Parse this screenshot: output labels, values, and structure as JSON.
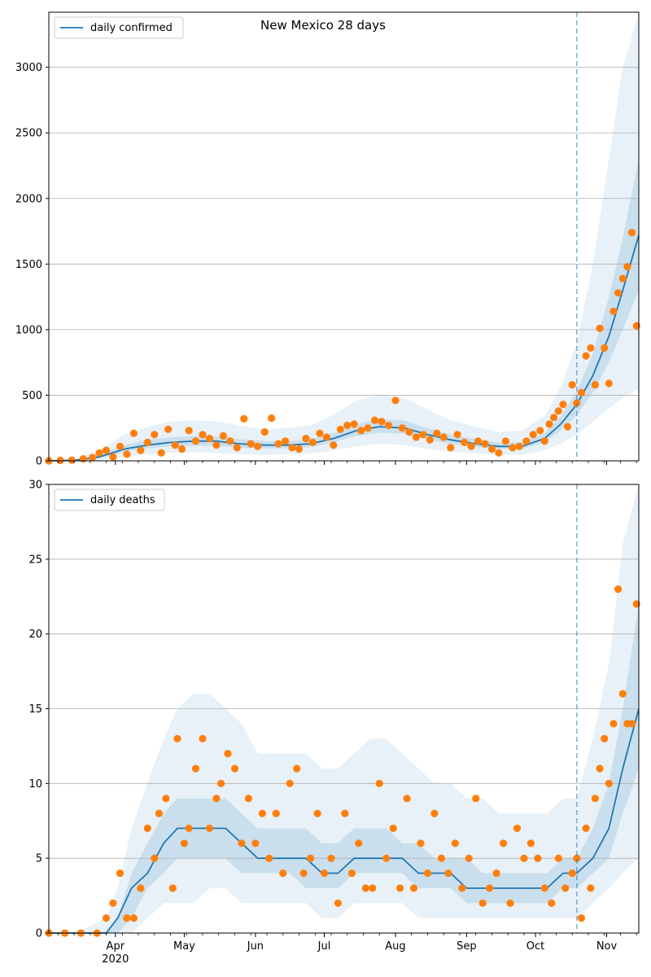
{
  "colors": {
    "line": "#1f77b4",
    "points": "#ff7f0e",
    "band": "#1f77b4",
    "grid": "#b0b0b0",
    "vline": "#1f77b4"
  },
  "chart_data": [
    {
      "type": "line",
      "title": "New Mexico 28 days",
      "xlabel": "",
      "ylabel": "",
      "xlim": [
        "2020-03-03",
        "2020-11-15"
      ],
      "ylim": [
        0,
        3420
      ],
      "yticks": [
        0,
        500,
        1000,
        1500,
        2000,
        2500,
        3000
      ],
      "grid": "horizontal",
      "legend": {
        "position": "top-left",
        "entries": [
          "daily confirmed"
        ]
      },
      "vline_date": "2020-10-19",
      "series": [
        {
          "name": "daily confirmed",
          "x": [
            "2020-03-03",
            "2020-03-15",
            "2020-03-25",
            "2020-04-05",
            "2020-04-15",
            "2020-04-25",
            "2020-05-05",
            "2020-05-15",
            "2020-05-25",
            "2020-06-05",
            "2020-06-15",
            "2020-06-25",
            "2020-07-05",
            "2020-07-15",
            "2020-07-25",
            "2020-08-05",
            "2020-08-15",
            "2020-08-25",
            "2020-09-05",
            "2020-09-15",
            "2020-09-25",
            "2020-10-05",
            "2020-10-12",
            "2020-10-19",
            "2020-10-26",
            "2020-11-02",
            "2020-11-08",
            "2020-11-15"
          ],
          "values": [
            0,
            5,
            30,
            90,
            120,
            140,
            150,
            150,
            130,
            120,
            120,
            130,
            170,
            230,
            260,
            250,
            200,
            160,
            130,
            110,
            110,
            170,
            280,
            430,
            650,
            950,
            1300,
            1720
          ],
          "band_p5": [
            0,
            0,
            5,
            30,
            50,
            60,
            65,
            60,
            50,
            45,
            50,
            55,
            80,
            110,
            130,
            120,
            90,
            70,
            55,
            45,
            45,
            80,
            130,
            200,
            300,
            400,
            480,
            550
          ],
          "band_p25": [
            0,
            2,
            20,
            70,
            95,
            110,
            115,
            115,
            100,
            95,
            95,
            105,
            140,
            190,
            215,
            205,
            165,
            130,
            105,
            90,
            90,
            140,
            230,
            350,
            520,
            750,
            1000,
            1300
          ],
          "band_p75": [
            0,
            10,
            45,
            120,
            160,
            180,
            190,
            185,
            165,
            150,
            150,
            165,
            210,
            280,
            320,
            305,
            250,
            200,
            165,
            140,
            140,
            210,
            340,
            530,
            820,
            1250,
            1700,
            2300
          ],
          "band_p95": [
            0,
            20,
            80,
            200,
            260,
            300,
            310,
            300,
            270,
            240,
            250,
            270,
            350,
            460,
            500,
            480,
            390,
            310,
            260,
            220,
            230,
            340,
            560,
            900,
            1500,
            2300,
            3000,
            3420
          ]
        },
        {
          "name": "",
          "kind": "observed points",
          "x": [
            "2020-03-03",
            "2020-03-08",
            "2020-03-13",
            "2020-03-18",
            "2020-03-22",
            "2020-03-25",
            "2020-03-28",
            "2020-03-31",
            "2020-04-03",
            "2020-04-06",
            "2020-04-09",
            "2020-04-12",
            "2020-04-15",
            "2020-04-18",
            "2020-04-21",
            "2020-04-24",
            "2020-04-27",
            "2020-04-30",
            "2020-05-03",
            "2020-05-06",
            "2020-05-09",
            "2020-05-12",
            "2020-05-15",
            "2020-05-18",
            "2020-05-21",
            "2020-05-24",
            "2020-05-27",
            "2020-05-30",
            "2020-06-02",
            "2020-06-05",
            "2020-06-08",
            "2020-06-11",
            "2020-06-14",
            "2020-06-17",
            "2020-06-20",
            "2020-06-23",
            "2020-06-26",
            "2020-06-29",
            "2020-07-02",
            "2020-07-05",
            "2020-07-08",
            "2020-07-11",
            "2020-07-14",
            "2020-07-17",
            "2020-07-20",
            "2020-07-23",
            "2020-07-26",
            "2020-07-29",
            "2020-08-01",
            "2020-08-04",
            "2020-08-07",
            "2020-08-10",
            "2020-08-13",
            "2020-08-16",
            "2020-08-19",
            "2020-08-22",
            "2020-08-25",
            "2020-08-28",
            "2020-08-31",
            "2020-09-03",
            "2020-09-06",
            "2020-09-09",
            "2020-09-12",
            "2020-09-15",
            "2020-09-18",
            "2020-09-21",
            "2020-09-24",
            "2020-09-27",
            "2020-09-30",
            "2020-10-03",
            "2020-10-05",
            "2020-10-07",
            "2020-10-09",
            "2020-10-11",
            "2020-10-13",
            "2020-10-15",
            "2020-10-17",
            "2020-10-19",
            "2020-10-21",
            "2020-10-23",
            "2020-10-25",
            "2020-10-27",
            "2020-10-29",
            "2020-10-31",
            "2020-11-02",
            "2020-11-04",
            "2020-11-06",
            "2020-11-08",
            "2020-11-10",
            "2020-11-12",
            "2020-11-14"
          ],
          "values": [
            0,
            3,
            5,
            15,
            25,
            60,
            80,
            30,
            110,
            50,
            210,
            80,
            140,
            200,
            60,
            240,
            120,
            90,
            230,
            150,
            200,
            170,
            120,
            190,
            150,
            100,
            320,
            130,
            110,
            220,
            325,
            130,
            150,
            100,
            90,
            170,
            140,
            210,
            180,
            120,
            240,
            270,
            280,
            230,
            250,
            310,
            300,
            270,
            460,
            250,
            220,
            180,
            200,
            160,
            210,
            180,
            100,
            200,
            140,
            110,
            150,
            130,
            90,
            60,
            150,
            100,
            110,
            150,
            200,
            230,
            150,
            280,
            330,
            380,
            430,
            260,
            580,
            440,
            520,
            800,
            860,
            580,
            1010,
            860,
            590,
            1140,
            1280,
            1390,
            1480,
            1740,
            1030
          ]
        }
      ]
    },
    {
      "type": "line",
      "title": "",
      "xlabel": "",
      "ylabel": "",
      "xlim": [
        "2020-03-03",
        "2020-11-15"
      ],
      "ylim": [
        0,
        30
      ],
      "yticks": [
        0,
        5,
        10,
        15,
        20,
        25,
        30
      ],
      "grid": "horizontal",
      "legend": {
        "position": "top-left",
        "entries": [
          "daily deaths"
        ]
      },
      "vline_date": "2020-10-19",
      "xtick_labels": [
        "Apr\n2020",
        "May",
        "Jun",
        "Jul",
        "Aug",
        "Sep",
        "Oct",
        "Nov"
      ],
      "xtick_dates": [
        "2020-04-01",
        "2020-05-01",
        "2020-06-01",
        "2020-07-01",
        "2020-08-01",
        "2020-09-01",
        "2020-10-01",
        "2020-11-01"
      ],
      "series": [
        {
          "name": "daily deaths",
          "x": [
            "2020-03-03",
            "2020-03-15",
            "2020-03-28",
            "2020-04-02",
            "2020-04-08",
            "2020-04-15",
            "2020-04-22",
            "2020-04-28",
            "2020-05-05",
            "2020-05-12",
            "2020-05-19",
            "2020-05-26",
            "2020-06-02",
            "2020-06-09",
            "2020-06-16",
            "2020-06-23",
            "2020-06-30",
            "2020-07-07",
            "2020-07-14",
            "2020-07-21",
            "2020-07-28",
            "2020-08-04",
            "2020-08-11",
            "2020-08-18",
            "2020-08-25",
            "2020-09-01",
            "2020-09-08",
            "2020-09-15",
            "2020-09-22",
            "2020-09-29",
            "2020-10-06",
            "2020-10-13",
            "2020-10-19",
            "2020-10-26",
            "2020-11-02",
            "2020-11-08",
            "2020-11-15"
          ],
          "values": [
            0,
            0,
            0,
            1,
            3,
            4,
            6,
            7,
            7,
            7,
            7,
            6,
            5,
            5,
            5,
            5,
            4,
            4,
            5,
            5,
            5,
            5,
            4,
            4,
            4,
            3,
            3,
            3,
            3,
            3,
            3,
            4,
            4,
            5,
            7,
            11,
            15
          ],
          "band_p5": [
            0,
            0,
            0,
            0,
            0,
            1,
            2,
            2,
            2,
            3,
            3,
            2,
            2,
            2,
            2,
            2,
            1,
            1,
            2,
            2,
            2,
            2,
            1,
            1,
            1,
            1,
            1,
            1,
            1,
            1,
            1,
            1,
            1,
            2,
            3,
            4,
            5
          ],
          "band_p25": [
            0,
            0,
            0,
            0,
            1,
            3,
            4,
            5,
            5,
            5,
            5,
            4,
            4,
            4,
            4,
            3,
            3,
            3,
            4,
            4,
            4,
            4,
            3,
            3,
            3,
            2,
            2,
            2,
            2,
            2,
            2,
            3,
            3,
            4,
            5,
            8,
            11
          ],
          "band_p75": [
            0,
            0,
            0,
            1,
            4,
            6,
            8,
            9,
            9,
            9,
            9,
            8,
            7,
            7,
            7,
            7,
            6,
            6,
            7,
            7,
            7,
            6,
            6,
            5,
            5,
            5,
            4,
            4,
            4,
            4,
            4,
            5,
            5,
            7,
            10,
            15,
            22
          ],
          "band_p95": [
            0,
            0,
            1,
            3,
            7,
            10,
            13,
            15,
            16,
            16,
            15,
            14,
            12,
            12,
            12,
            12,
            11,
            11,
            12,
            13,
            13,
            12,
            11,
            10,
            10,
            9,
            9,
            8,
            8,
            8,
            8,
            9,
            9,
            13,
            18,
            26,
            30
          ]
        },
        {
          "name": "",
          "kind": "observed points",
          "x": [
            "2020-03-03",
            "2020-03-10",
            "2020-03-17",
            "2020-03-24",
            "2020-03-28",
            "2020-03-31",
            "2020-04-03",
            "2020-04-06",
            "2020-04-09",
            "2020-04-12",
            "2020-04-15",
            "2020-04-18",
            "2020-04-20",
            "2020-04-23",
            "2020-04-26",
            "2020-04-28",
            "2020-05-01",
            "2020-05-03",
            "2020-05-06",
            "2020-05-09",
            "2020-05-12",
            "2020-05-15",
            "2020-05-17",
            "2020-05-20",
            "2020-05-23",
            "2020-05-26",
            "2020-05-29",
            "2020-06-01",
            "2020-06-04",
            "2020-06-07",
            "2020-06-10",
            "2020-06-13",
            "2020-06-16",
            "2020-06-19",
            "2020-06-22",
            "2020-06-25",
            "2020-06-28",
            "2020-07-01",
            "2020-07-04",
            "2020-07-07",
            "2020-07-10",
            "2020-07-13",
            "2020-07-16",
            "2020-07-19",
            "2020-07-22",
            "2020-07-25",
            "2020-07-28",
            "2020-07-31",
            "2020-08-03",
            "2020-08-06",
            "2020-08-09",
            "2020-08-12",
            "2020-08-15",
            "2020-08-18",
            "2020-08-21",
            "2020-08-24",
            "2020-08-27",
            "2020-08-30",
            "2020-09-02",
            "2020-09-05",
            "2020-09-08",
            "2020-09-11",
            "2020-09-14",
            "2020-09-17",
            "2020-09-20",
            "2020-09-23",
            "2020-09-26",
            "2020-09-29",
            "2020-10-02",
            "2020-10-05",
            "2020-10-08",
            "2020-10-11",
            "2020-10-14",
            "2020-10-17",
            "2020-10-19",
            "2020-10-21",
            "2020-10-23",
            "2020-10-25",
            "2020-10-27",
            "2020-10-29",
            "2020-10-31",
            "2020-11-02",
            "2020-11-04",
            "2020-11-06",
            "2020-11-08",
            "2020-11-10",
            "2020-11-12",
            "2020-11-14"
          ],
          "values": [
            0,
            0,
            0,
            0,
            1,
            2,
            4,
            1,
            1,
            3,
            7,
            5,
            8,
            9,
            3,
            13,
            6,
            7,
            11,
            13,
            7,
            9,
            10,
            12,
            11,
            6,
            9,
            6,
            8,
            5,
            8,
            4,
            10,
            11,
            4,
            5,
            8,
            4,
            5,
            2,
            8,
            4,
            6,
            3,
            3,
            10,
            5,
            7,
            3,
            9,
            3,
            6,
            4,
            8,
            5,
            4,
            6,
            3,
            5,
            9,
            2,
            3,
            4,
            6,
            2,
            7,
            5,
            6,
            5,
            3,
            2,
            5,
            3,
            4,
            5,
            1,
            7,
            3,
            9,
            11,
            13,
            10,
            14,
            23,
            16,
            14,
            14,
            22
          ]
        }
      ]
    }
  ]
}
